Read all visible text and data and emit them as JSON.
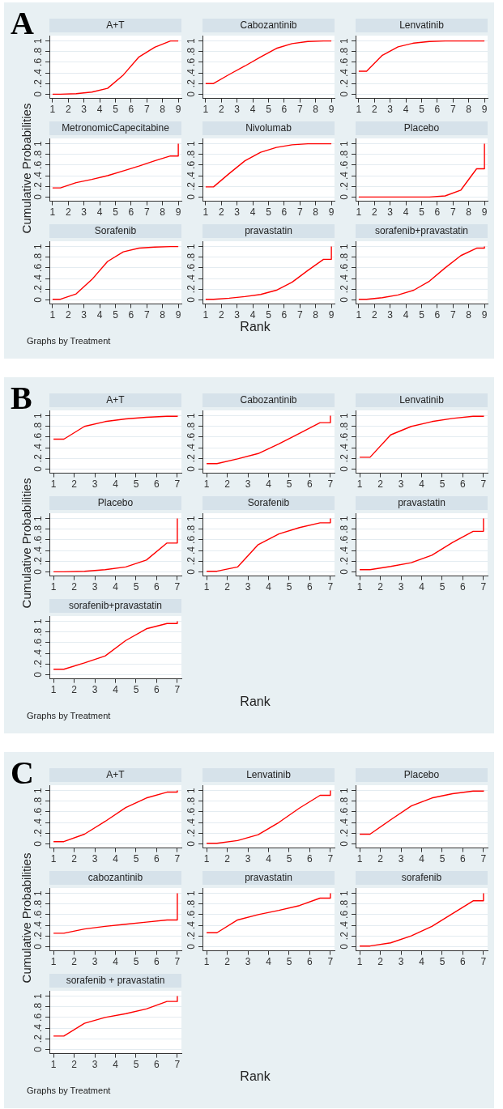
{
  "chart_data": [
    {
      "type": "other",
      "title": "A",
      "xlabel": "Rank",
      "ylabel": "Cumulative Probabilities",
      "annotations": [
        "Graphs by Treatment"
      ]
    },
    {
      "type": "line",
      "title": "A+T",
      "x": [
        1,
        1.5,
        2.5,
        3.5,
        4.5,
        5.5,
        6.5,
        7.5,
        8.5,
        9,
        9
      ],
      "series": [
        {
          "color": "#ff0000",
          "values": [
            0,
            0,
            0.01,
            0.04,
            0.11,
            0.36,
            0.7,
            0.88,
            1,
            1,
            1
          ]
        }
      ],
      "xlim": [
        0.8,
        9.2
      ],
      "xticks": [
        1,
        2,
        3,
        4,
        5,
        6,
        7,
        8,
        9
      ],
      "ylim": [
        -0.08,
        1.1
      ],
      "yticks": [
        {
          "value": 0,
          "label": "0"
        },
        {
          "value": 0.2,
          "label": ".2"
        },
        {
          "value": 0.4,
          "label": ".4"
        },
        {
          "value": 0.6,
          "label": ".6"
        },
        {
          "value": 0.8,
          "label": ".8"
        },
        {
          "value": 1,
          "label": "1"
        }
      ],
      "grid": "y",
      "marker": "none"
    },
    {
      "type": "line",
      "title": "Cabozantinib",
      "x": [
        1,
        1.5,
        2.5,
        3.5,
        4.5,
        5.5,
        6.5,
        7.5,
        8.5,
        9,
        9
      ],
      "series": [
        {
          "color": "#ff0000",
          "values": [
            0.2,
            0.2,
            0.37,
            0.53,
            0.7,
            0.86,
            0.95,
            0.99,
            1,
            1,
            1
          ]
        }
      ],
      "xlim": [
        0.8,
        9.2
      ],
      "xticks": [
        1,
        2,
        3,
        4,
        5,
        6,
        7,
        8,
        9
      ],
      "ylim": [
        -0.08,
        1.1
      ],
      "yticks": [
        {
          "value": 0,
          "label": "0"
        },
        {
          "value": 0.2,
          "label": ".2"
        },
        {
          "value": 0.4,
          "label": ".4"
        },
        {
          "value": 0.6,
          "label": ".6"
        },
        {
          "value": 0.8,
          "label": ".8"
        },
        {
          "value": 1,
          "label": "1"
        }
      ],
      "grid": "y",
      "marker": "none"
    },
    {
      "type": "line",
      "title": "Lenvatinib",
      "x": [
        1,
        1.5,
        2.5,
        3.5,
        4.5,
        5.5,
        6.5,
        7.5,
        8.5,
        9,
        9
      ],
      "series": [
        {
          "color": "#ff0000",
          "values": [
            0.43,
            0.43,
            0.73,
            0.89,
            0.96,
            0.99,
            1,
            1,
            1,
            1,
            1
          ]
        }
      ],
      "xlim": [
        0.8,
        9.2
      ],
      "xticks": [
        1,
        2,
        3,
        4,
        5,
        6,
        7,
        8,
        9
      ],
      "ylim": [
        -0.08,
        1.1
      ],
      "yticks": [
        {
          "value": 0,
          "label": "0"
        },
        {
          "value": 0.2,
          "label": ".2"
        },
        {
          "value": 0.4,
          "label": ".4"
        },
        {
          "value": 0.6,
          "label": ".6"
        },
        {
          "value": 0.8,
          "label": ".8"
        },
        {
          "value": 1,
          "label": "1"
        }
      ],
      "grid": "y",
      "marker": "none"
    },
    {
      "type": "line",
      "title": "MetronomicCapecitabine",
      "x": [
        1,
        1.5,
        2.5,
        3.5,
        4.5,
        5.5,
        6.5,
        7.5,
        8.5,
        9,
        9
      ],
      "series": [
        {
          "color": "#ff0000",
          "values": [
            0.17,
            0.17,
            0.27,
            0.33,
            0.4,
            0.49,
            0.58,
            0.68,
            0.77,
            0.77,
            1
          ]
        }
      ],
      "xlim": [
        0.8,
        9.2
      ],
      "xticks": [
        1,
        2,
        3,
        4,
        5,
        6,
        7,
        8,
        9
      ],
      "ylim": [
        -0.08,
        1.1
      ],
      "yticks": [
        {
          "value": 0,
          "label": "0"
        },
        {
          "value": 0.2,
          "label": ".2"
        },
        {
          "value": 0.4,
          "label": ".4"
        },
        {
          "value": 0.6,
          "label": ".6"
        },
        {
          "value": 0.8,
          "label": ".8"
        },
        {
          "value": 1,
          "label": "1"
        }
      ],
      "grid": "y",
      "marker": "none"
    },
    {
      "type": "line",
      "title": "Nivolumab",
      "x": [
        1,
        1.5,
        2.5,
        3.5,
        4.5,
        5.5,
        6.5,
        7.5,
        8.5,
        9,
        9
      ],
      "series": [
        {
          "color": "#ff0000",
          "values": [
            0.19,
            0.19,
            0.44,
            0.68,
            0.84,
            0.93,
            0.98,
            1,
            1,
            1,
            1
          ]
        }
      ],
      "xlim": [
        0.8,
        9.2
      ],
      "xticks": [
        1,
        2,
        3,
        4,
        5,
        6,
        7,
        8,
        9
      ],
      "ylim": [
        -0.08,
        1.1
      ],
      "yticks": [
        {
          "value": 0,
          "label": "0"
        },
        {
          "value": 0.2,
          "label": ".2"
        },
        {
          "value": 0.4,
          "label": ".4"
        },
        {
          "value": 0.6,
          "label": ".6"
        },
        {
          "value": 0.8,
          "label": ".8"
        },
        {
          "value": 1,
          "label": "1"
        }
      ],
      "grid": "y",
      "marker": "none"
    },
    {
      "type": "line",
      "title": "Placebo",
      "x": [
        1,
        1.5,
        2.5,
        3.5,
        4.5,
        5.5,
        6.5,
        7.5,
        8.5,
        9,
        9
      ],
      "series": [
        {
          "color": "#ff0000",
          "values": [
            0,
            0,
            0,
            0,
            0,
            0,
            0.02,
            0.13,
            0.53,
            0.53,
            1
          ]
        }
      ],
      "xlim": [
        0.8,
        9.2
      ],
      "xticks": [
        1,
        2,
        3,
        4,
        5,
        6,
        7,
        8,
        9
      ],
      "ylim": [
        -0.08,
        1.1
      ],
      "yticks": [
        {
          "value": 0,
          "label": "0"
        },
        {
          "value": 0.2,
          "label": ".2"
        },
        {
          "value": 0.4,
          "label": ".4"
        },
        {
          "value": 0.6,
          "label": ".6"
        },
        {
          "value": 0.8,
          "label": ".8"
        },
        {
          "value": 1,
          "label": "1"
        }
      ],
      "grid": "y",
      "marker": "none"
    },
    {
      "type": "line",
      "title": "Sorafenib",
      "x": [
        1,
        1.5,
        2.5,
        3.5,
        4.5,
        5.5,
        6.5,
        7.5,
        8.5,
        9,
        9
      ],
      "series": [
        {
          "color": "#ff0000",
          "values": [
            0.01,
            0.01,
            0.11,
            0.38,
            0.72,
            0.9,
            0.97,
            0.99,
            1,
            1,
            1
          ]
        }
      ],
      "xlim": [
        0.8,
        9.2
      ],
      "xticks": [
        1,
        2,
        3,
        4,
        5,
        6,
        7,
        8,
        9
      ],
      "ylim": [
        -0.08,
        1.1
      ],
      "yticks": [
        {
          "value": 0,
          "label": "0"
        },
        {
          "value": 0.2,
          "label": ".2"
        },
        {
          "value": 0.4,
          "label": ".4"
        },
        {
          "value": 0.6,
          "label": ".6"
        },
        {
          "value": 0.8,
          "label": ".8"
        },
        {
          "value": 1,
          "label": "1"
        }
      ],
      "grid": "y",
      "marker": "none"
    },
    {
      "type": "line",
      "title": "pravastatin",
      "x": [
        1,
        1.5,
        2.5,
        3.5,
        4.5,
        5.5,
        6.5,
        7.5,
        8.5,
        9,
        9
      ],
      "series": [
        {
          "color": "#ff0000",
          "values": [
            0.01,
            0.01,
            0.03,
            0.06,
            0.1,
            0.18,
            0.33,
            0.55,
            0.76,
            0.76,
            1
          ]
        }
      ],
      "xlim": [
        0.8,
        9.2
      ],
      "xticks": [
        1,
        2,
        3,
        4,
        5,
        6,
        7,
        8,
        9
      ],
      "ylim": [
        -0.08,
        1.1
      ],
      "yticks": [
        {
          "value": 0,
          "label": "0"
        },
        {
          "value": 0.2,
          "label": ".2"
        },
        {
          "value": 0.4,
          "label": ".4"
        },
        {
          "value": 0.6,
          "label": ".6"
        },
        {
          "value": 0.8,
          "label": ".8"
        },
        {
          "value": 1,
          "label": "1"
        }
      ],
      "grid": "y",
      "marker": "none"
    },
    {
      "type": "line",
      "title": "sorafenib+pravastatin",
      "x": [
        1,
        1.5,
        2.5,
        3.5,
        4.5,
        5.5,
        6.5,
        7.5,
        8.5,
        9,
        9
      ],
      "series": [
        {
          "color": "#ff0000",
          "values": [
            0.01,
            0.01,
            0.04,
            0.09,
            0.18,
            0.35,
            0.6,
            0.83,
            0.97,
            0.97,
            1
          ]
        }
      ],
      "xlim": [
        0.8,
        9.2
      ],
      "xticks": [
        1,
        2,
        3,
        4,
        5,
        6,
        7,
        8,
        9
      ],
      "ylim": [
        -0.08,
        1.1
      ],
      "yticks": [
        {
          "value": 0,
          "label": "0"
        },
        {
          "value": 0.2,
          "label": ".2"
        },
        {
          "value": 0.4,
          "label": ".4"
        },
        {
          "value": 0.6,
          "label": ".6"
        },
        {
          "value": 0.8,
          "label": ".8"
        },
        {
          "value": 1,
          "label": "1"
        }
      ],
      "grid": "y",
      "marker": "none"
    },
    {
      "type": "other",
      "title": "B",
      "xlabel": "Rank",
      "ylabel": "Cumulative Probabilities",
      "annotations": [
        "Graphs by Treatment"
      ]
    },
    {
      "type": "line",
      "title": "A+T",
      "x": [
        1,
        1.5,
        2.5,
        3.5,
        4.5,
        5.5,
        6.5,
        7,
        7
      ],
      "series": [
        {
          "color": "#ff0000",
          "values": [
            0.56,
            0.56,
            0.8,
            0.89,
            0.94,
            0.97,
            0.99,
            0.99,
            1
          ]
        }
      ],
      "xlim": [
        0.8,
        7.2
      ],
      "xticks": [
        1,
        2,
        3,
        4,
        5,
        6,
        7
      ],
      "ylim": [
        -0.08,
        1.1
      ],
      "yticks": [
        {
          "value": 0,
          "label": "0"
        },
        {
          "value": 0.2,
          "label": ".2"
        },
        {
          "value": 0.4,
          "label": ".4"
        },
        {
          "value": 0.6,
          "label": ".6"
        },
        {
          "value": 0.8,
          "label": ".8"
        },
        {
          "value": 1,
          "label": "1"
        }
      ],
      "grid": "y",
      "marker": "none"
    },
    {
      "type": "line",
      "title": "Cabozantinib",
      "x": [
        1,
        1.5,
        2.5,
        3.5,
        4.5,
        5.5,
        6.5,
        7,
        7
      ],
      "series": [
        {
          "color": "#ff0000",
          "values": [
            0.1,
            0.1,
            0.19,
            0.29,
            0.47,
            0.67,
            0.87,
            0.87,
            1
          ]
        }
      ],
      "xlim": [
        0.8,
        7.2
      ],
      "xticks": [
        1,
        2,
        3,
        4,
        5,
        6,
        7
      ],
      "ylim": [
        -0.08,
        1.1
      ],
      "yticks": [
        {
          "value": 0,
          "label": "0"
        },
        {
          "value": 0.2,
          "label": ".2"
        },
        {
          "value": 0.4,
          "label": ".4"
        },
        {
          "value": 0.6,
          "label": ".6"
        },
        {
          "value": 0.8,
          "label": ".8"
        },
        {
          "value": 1,
          "label": "1"
        }
      ],
      "grid": "y",
      "marker": "none"
    },
    {
      "type": "line",
      "title": "Lenvatinib",
      "x": [
        1,
        1.5,
        2.5,
        3.5,
        4.5,
        5.5,
        6.5,
        7,
        7
      ],
      "series": [
        {
          "color": "#ff0000",
          "values": [
            0.22,
            0.22,
            0.64,
            0.8,
            0.89,
            0.95,
            0.99,
            0.99,
            1
          ]
        }
      ],
      "xlim": [
        0.8,
        7.2
      ],
      "xticks": [
        1,
        2,
        3,
        4,
        5,
        6,
        7
      ],
      "ylim": [
        -0.08,
        1.1
      ],
      "yticks": [
        {
          "value": 0,
          "label": "0"
        },
        {
          "value": 0.2,
          "label": ".2"
        },
        {
          "value": 0.4,
          "label": ".4"
        },
        {
          "value": 0.6,
          "label": ".6"
        },
        {
          "value": 0.8,
          "label": ".8"
        },
        {
          "value": 1,
          "label": "1"
        }
      ],
      "grid": "y",
      "marker": "none"
    },
    {
      "type": "line",
      "title": "Placebo",
      "x": [
        1,
        1.5,
        2.5,
        3.5,
        4.5,
        5.5,
        6.5,
        7,
        7
      ],
      "series": [
        {
          "color": "#ff0000",
          "values": [
            0,
            0,
            0.01,
            0.04,
            0.09,
            0.22,
            0.54,
            0.54,
            1
          ]
        }
      ],
      "xlim": [
        0.8,
        7.2
      ],
      "xticks": [
        1,
        2,
        3,
        4,
        5,
        6,
        7
      ],
      "ylim": [
        -0.08,
        1.1
      ],
      "yticks": [
        {
          "value": 0,
          "label": "0"
        },
        {
          "value": 0.2,
          "label": ".2"
        },
        {
          "value": 0.4,
          "label": ".4"
        },
        {
          "value": 0.6,
          "label": ".6"
        },
        {
          "value": 0.8,
          "label": ".8"
        },
        {
          "value": 1,
          "label": "1"
        }
      ],
      "grid": "y",
      "marker": "none"
    },
    {
      "type": "line",
      "title": "Sorafenib",
      "x": [
        1,
        1.5,
        2.5,
        3.5,
        4.5,
        5.5,
        6.5,
        7,
        7
      ],
      "series": [
        {
          "color": "#ff0000",
          "values": [
            0.01,
            0.01,
            0.09,
            0.51,
            0.71,
            0.83,
            0.92,
            0.92,
            1
          ]
        }
      ],
      "xlim": [
        0.8,
        7.2
      ],
      "xticks": [
        1,
        2,
        3,
        4,
        5,
        6,
        7
      ],
      "ylim": [
        -0.08,
        1.1
      ],
      "yticks": [
        {
          "value": 0,
          "label": "0"
        },
        {
          "value": 0.2,
          "label": ".2"
        },
        {
          "value": 0.4,
          "label": ".4"
        },
        {
          "value": 0.6,
          "label": ".6"
        },
        {
          "value": 0.8,
          "label": ".8"
        },
        {
          "value": 1,
          "label": "1"
        }
      ],
      "grid": "y",
      "marker": "none"
    },
    {
      "type": "line",
      "title": "pravastatin",
      "x": [
        1,
        1.5,
        2.5,
        3.5,
        4.5,
        5.5,
        6.5,
        7,
        7
      ],
      "series": [
        {
          "color": "#ff0000",
          "values": [
            0.04,
            0.04,
            0.1,
            0.17,
            0.31,
            0.55,
            0.76,
            0.76,
            1
          ]
        }
      ],
      "xlim": [
        0.8,
        7.2
      ],
      "xticks": [
        1,
        2,
        3,
        4,
        5,
        6,
        7
      ],
      "ylim": [
        -0.08,
        1.1
      ],
      "yticks": [
        {
          "value": 0,
          "label": "0"
        },
        {
          "value": 0.2,
          "label": ".2"
        },
        {
          "value": 0.4,
          "label": ".4"
        },
        {
          "value": 0.6,
          "label": ".6"
        },
        {
          "value": 0.8,
          "label": ".8"
        },
        {
          "value": 1,
          "label": "1"
        }
      ],
      "grid": "y",
      "marker": "none"
    },
    {
      "type": "line",
      "title": "sorafenib+pravastatin",
      "x": [
        1,
        1.5,
        2.5,
        3.5,
        4.5,
        5.5,
        6.5,
        7,
        7
      ],
      "series": [
        {
          "color": "#ff0000",
          "values": [
            0.1,
            0.1,
            0.22,
            0.35,
            0.64,
            0.86,
            0.96,
            0.96,
            1
          ]
        }
      ],
      "xlim": [
        0.8,
        7.2
      ],
      "xticks": [
        1,
        2,
        3,
        4,
        5,
        6,
        7
      ],
      "ylim": [
        -0.08,
        1.1
      ],
      "yticks": [
        {
          "value": 0,
          "label": "0"
        },
        {
          "value": 0.2,
          "label": ".2"
        },
        {
          "value": 0.4,
          "label": ".4"
        },
        {
          "value": 0.6,
          "label": ".6"
        },
        {
          "value": 0.8,
          "label": ".8"
        },
        {
          "value": 1,
          "label": "1"
        }
      ],
      "grid": "y",
      "marker": "none"
    },
    {
      "type": "other",
      "title": "C",
      "xlabel": "Rank",
      "ylabel": "Cumulative Probabilities",
      "annotations": [
        "Graphs by Treatment"
      ]
    },
    {
      "type": "line",
      "title": "A+T",
      "x": [
        1,
        1.5,
        2.5,
        3.5,
        4.5,
        5.5,
        6.5,
        7,
        7
      ],
      "series": [
        {
          "color": "#ff0000",
          "values": [
            0.04,
            0.04,
            0.18,
            0.42,
            0.68,
            0.86,
            0.97,
            0.97,
            1
          ]
        }
      ],
      "xlim": [
        0.8,
        7.2
      ],
      "xticks": [
        1,
        2,
        3,
        4,
        5,
        6,
        7
      ],
      "ylim": [
        -0.08,
        1.1
      ],
      "yticks": [
        {
          "value": 0,
          "label": "0"
        },
        {
          "value": 0.2,
          "label": ".2"
        },
        {
          "value": 0.4,
          "label": ".4"
        },
        {
          "value": 0.6,
          "label": ".6"
        },
        {
          "value": 0.8,
          "label": ".8"
        },
        {
          "value": 1,
          "label": "1"
        }
      ],
      "grid": "y",
      "marker": "none"
    },
    {
      "type": "line",
      "title": "Lenvatinib",
      "x": [
        1,
        1.5,
        2.5,
        3.5,
        4.5,
        5.5,
        6.5,
        7,
        7
      ],
      "series": [
        {
          "color": "#ff0000",
          "values": [
            0.01,
            0.01,
            0.06,
            0.17,
            0.4,
            0.67,
            0.91,
            0.91,
            1
          ]
        }
      ],
      "xlim": [
        0.8,
        7.2
      ],
      "xticks": [
        1,
        2,
        3,
        4,
        5,
        6,
        7
      ],
      "ylim": [
        -0.08,
        1.1
      ],
      "yticks": [
        {
          "value": 0,
          "label": "0"
        },
        {
          "value": 0.2,
          "label": ".2"
        },
        {
          "value": 0.4,
          "label": ".4"
        },
        {
          "value": 0.6,
          "label": ".6"
        },
        {
          "value": 0.8,
          "label": ".8"
        },
        {
          "value": 1,
          "label": "1"
        }
      ],
      "grid": "y",
      "marker": "none"
    },
    {
      "type": "line",
      "title": "Placebo",
      "x": [
        1,
        1.5,
        2.5,
        3.5,
        4.5,
        5.5,
        6.5,
        7,
        7
      ],
      "series": [
        {
          "color": "#ff0000",
          "values": [
            0.18,
            0.18,
            0.45,
            0.71,
            0.86,
            0.94,
            0.99,
            0.99,
            1
          ]
        }
      ],
      "xlim": [
        0.8,
        7.2
      ],
      "xticks": [
        1,
        2,
        3,
        4,
        5,
        6,
        7
      ],
      "ylim": [
        -0.08,
        1.1
      ],
      "yticks": [
        {
          "value": 0,
          "label": "0"
        },
        {
          "value": 0.2,
          "label": ".2"
        },
        {
          "value": 0.4,
          "label": ".4"
        },
        {
          "value": 0.6,
          "label": ".6"
        },
        {
          "value": 0.8,
          "label": ".8"
        },
        {
          "value": 1,
          "label": "1"
        }
      ],
      "grid": "y",
      "marker": "none"
    },
    {
      "type": "line",
      "title": "cabozantinib",
      "x": [
        1,
        1.5,
        2.5,
        3.5,
        4.5,
        5.5,
        6.5,
        7,
        7
      ],
      "series": [
        {
          "color": "#ff0000",
          "values": [
            0.25,
            0.25,
            0.33,
            0.38,
            0.42,
            0.46,
            0.5,
            0.5,
            1
          ]
        }
      ],
      "xlim": [
        0.8,
        7.2
      ],
      "xticks": [
        1,
        2,
        3,
        4,
        5,
        6,
        7
      ],
      "ylim": [
        -0.08,
        1.1
      ],
      "yticks": [
        {
          "value": 0,
          "label": "0"
        },
        {
          "value": 0.2,
          "label": ".2"
        },
        {
          "value": 0.4,
          "label": ".4"
        },
        {
          "value": 0.6,
          "label": ".6"
        },
        {
          "value": 0.8,
          "label": ".8"
        },
        {
          "value": 1,
          "label": "1"
        }
      ],
      "grid": "y",
      "marker": "none"
    },
    {
      "type": "line",
      "title": "pravastatin",
      "x": [
        1,
        1.5,
        2.5,
        3.5,
        4.5,
        5.5,
        6.5,
        7,
        7
      ],
      "series": [
        {
          "color": "#ff0000",
          "values": [
            0.26,
            0.26,
            0.5,
            0.6,
            0.68,
            0.77,
            0.91,
            0.91,
            1
          ]
        }
      ],
      "xlim": [
        0.8,
        7.2
      ],
      "xticks": [
        1,
        2,
        3,
        4,
        5,
        6,
        7
      ],
      "ylim": [
        -0.08,
        1.1
      ],
      "yticks": [
        {
          "value": 0,
          "label": "0"
        },
        {
          "value": 0.2,
          "label": ".2"
        },
        {
          "value": 0.4,
          "label": ".4"
        },
        {
          "value": 0.6,
          "label": ".6"
        },
        {
          "value": 0.8,
          "label": ".8"
        },
        {
          "value": 1,
          "label": "1"
        }
      ],
      "grid": "y",
      "marker": "none"
    },
    {
      "type": "line",
      "title": "sorafenib",
      "x": [
        1,
        1.5,
        2.5,
        3.5,
        4.5,
        5.5,
        6.5,
        7,
        7
      ],
      "series": [
        {
          "color": "#ff0000",
          "values": [
            0.01,
            0.01,
            0.07,
            0.2,
            0.38,
            0.62,
            0.86,
            0.86,
            1
          ]
        }
      ],
      "xlim": [
        0.8,
        7.2
      ],
      "xticks": [
        1,
        2,
        3,
        4,
        5,
        6,
        7
      ],
      "ylim": [
        -0.08,
        1.1
      ],
      "yticks": [
        {
          "value": 0,
          "label": "0"
        },
        {
          "value": 0.2,
          "label": ".2"
        },
        {
          "value": 0.4,
          "label": ".4"
        },
        {
          "value": 0.6,
          "label": ".6"
        },
        {
          "value": 0.8,
          "label": ".8"
        },
        {
          "value": 1,
          "label": "1"
        }
      ],
      "grid": "y",
      "marker": "none"
    },
    {
      "type": "line",
      "title": "sorafenib + pravastatin",
      "x": [
        1,
        1.5,
        2.5,
        3.5,
        4.5,
        5.5,
        6.5,
        7,
        7
      ],
      "series": [
        {
          "color": "#ff0000",
          "values": [
            0.25,
            0.25,
            0.49,
            0.6,
            0.67,
            0.76,
            0.9,
            0.9,
            1
          ]
        }
      ],
      "xlim": [
        0.8,
        7.2
      ],
      "xticks": [
        1,
        2,
        3,
        4,
        5,
        6,
        7
      ],
      "ylim": [
        -0.08,
        1.1
      ],
      "yticks": [
        {
          "value": 0,
          "label": "0"
        },
        {
          "value": 0.2,
          "label": ".2"
        },
        {
          "value": 0.4,
          "label": ".4"
        },
        {
          "value": 0.6,
          "label": ".6"
        },
        {
          "value": 0.8,
          "label": ".8"
        },
        {
          "value": 1,
          "label": "1"
        }
      ],
      "grid": "y",
      "marker": "none"
    }
  ]
}
